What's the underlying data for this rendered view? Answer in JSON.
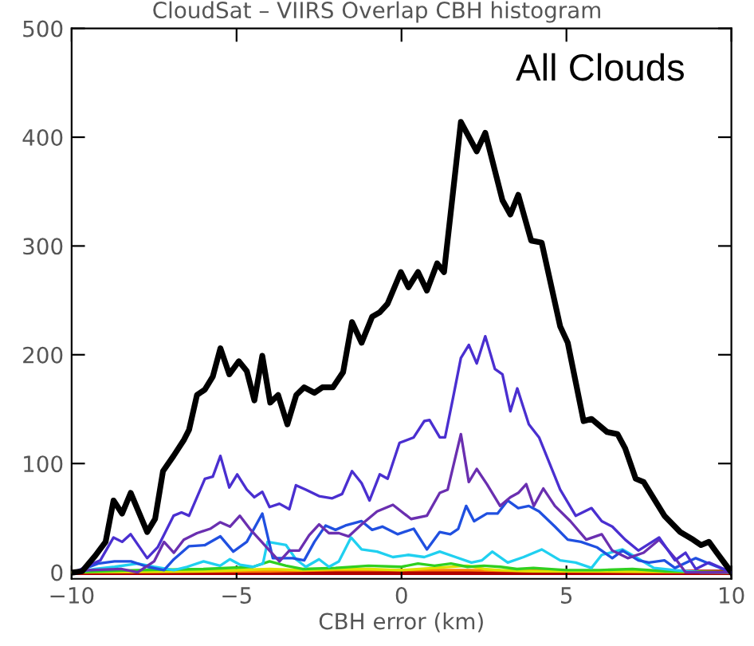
{
  "chart_data": {
    "type": "line",
    "title": "CloudSat – VIIRS Overlap CBH histogram",
    "xlabel": "CBH error (km)",
    "annotations": [
      "All Clouds"
    ],
    "xlim": [
      -10,
      10
    ],
    "xticks": [
      {
        "value": -10,
        "label": "−10"
      },
      {
        "value": -5,
        "label": "−5"
      },
      0,
      5,
      10
    ],
    "ylim": [
      -6,
      500
    ],
    "yticks": [
      0,
      100,
      200,
      300,
      400,
      500
    ],
    "grid": false,
    "legend": false,
    "marker": "none",
    "line_style": "solid",
    "series": [
      {
        "color": "#000000",
        "x": [
          -9.92,
          -9.68,
          -9.29,
          -8.97,
          -8.73,
          -8.47,
          -8.21,
          -7.71,
          -7.47,
          -7.23,
          -6.91,
          -6.59,
          -6.44,
          -6.2,
          -5.96,
          -5.72,
          -5.49,
          -5.22,
          -4.93,
          -4.69,
          -4.46,
          -4.22,
          -3.98,
          -3.74,
          -3.46,
          -3.19,
          -2.95,
          -2.64,
          -2.4,
          -2.08,
          -1.77,
          -1.5,
          -1.21,
          -0.89,
          -0.66,
          -0.42,
          -0.02,
          0.21,
          0.5,
          0.77,
          1.08,
          1.29,
          1.8,
          2.28,
          2.54,
          3.06,
          3.3,
          3.54,
          3.93,
          4.25,
          4.81,
          5.04,
          5.52,
          5.76,
          6.23,
          6.55,
          6.78,
          7.1,
          7.34,
          7.97,
          8.45,
          8.84,
          9.08,
          9.32,
          9.56,
          10
        ],
        "values": [
          0,
          1,
          15,
          28,
          66,
          54,
          73,
          37,
          49,
          93,
          107,
          122,
          131,
          163,
          168,
          180,
          206,
          182,
          194,
          185,
          158,
          199,
          156,
          163,
          136,
          163,
          170,
          165,
          170,
          170,
          184,
          230,
          211,
          235,
          239,
          247,
          276,
          262,
          276,
          259,
          284,
          276,
          414,
          387,
          404,
          342,
          329,
          347,
          305,
          303,
          226,
          211,
          139,
          141,
          129,
          127,
          114,
          86,
          83,
          52,
          37,
          30,
          25,
          28,
          18,
          0
        ]
      },
      {
        "color": "#4a2fd0",
        "x": [
          -9.92,
          -9.13,
          -8.73,
          -8.47,
          -8.21,
          -7.71,
          -7.39,
          -6.91,
          -6.67,
          -6.44,
          -5.96,
          -5.72,
          -5.49,
          -5.22,
          -4.98,
          -4.69,
          -4.46,
          -4.22,
          -4.0,
          -3.7,
          -3.4,
          -3.2,
          -2.9,
          -2.5,
          -2.1,
          -1.8,
          -1.5,
          -1.21,
          -0.97,
          -0.66,
          -0.42,
          -0.06,
          0.37,
          0.69,
          0.85,
          1.16,
          1.32,
          1.56,
          1.8,
          2.04,
          2.28,
          2.54,
          2.83,
          3.06,
          3.3,
          3.51,
          3.86,
          4.17,
          4.81,
          5.28,
          5.76,
          6.07,
          6.39,
          6.78,
          7.18,
          7.81,
          8.29,
          8.61,
          8.92,
          9.32,
          10
        ],
        "values": [
          0,
          11,
          32,
          28,
          35,
          13,
          23,
          52,
          55,
          52,
          86,
          88,
          107,
          78,
          90,
          76,
          69,
          74,
          60,
          63,
          58,
          80,
          76,
          70,
          68,
          72,
          93,
          82,
          66,
          90,
          86,
          119,
          124,
          139,
          140,
          124,
          124,
          160,
          197,
          209,
          192,
          217,
          187,
          182,
          148,
          169,
          136,
          124,
          76,
          52,
          59,
          47,
          42,
          30,
          20,
          32,
          11,
          18,
          3,
          9,
          0
        ]
      },
      {
        "color": "#6a2fb0",
        "x": [
          -10,
          -9.5,
          -8.5,
          -8.0,
          -7.5,
          -7.2,
          -6.9,
          -6.6,
          -6.2,
          -5.8,
          -5.5,
          -5.2,
          -4.9,
          -4.6,
          -4.3,
          -4.0,
          -3.7,
          -3.4,
          -3.1,
          -2.8,
          -2.5,
          -2.2,
          -1.9,
          -1.6,
          -1.21,
          -0.74,
          -0.26,
          0.29,
          0.77,
          1.16,
          1.4,
          1.8,
          2.04,
          2.28,
          2.59,
          2.99,
          3.3,
          3.54,
          3.78,
          4.01,
          4.3,
          4.65,
          5.12,
          5.6,
          6.07,
          6.39,
          6.86,
          7.34,
          7.81,
          8.29,
          8.61,
          10
        ],
        "values": [
          0,
          2,
          3,
          0,
          10,
          28,
          18,
          30,
          36,
          40,
          46,
          42,
          52,
          40,
          30,
          20,
          10,
          20,
          20,
          34,
          44,
          36,
          36,
          33,
          44,
          56,
          62,
          49,
          52,
          73,
          76,
          127,
          83,
          95,
          81,
          61,
          69,
          73,
          81,
          61,
          77,
          61,
          47,
          30,
          35,
          20,
          13,
          18,
          30,
          13,
          0,
          0
        ]
      },
      {
        "color": "#2050e0",
        "x": [
          -9.9,
          -9.2,
          -8.7,
          -8.2,
          -7.7,
          -7.2,
          -6.9,
          -6.44,
          -5.96,
          -5.49,
          -5.1,
          -4.69,
          -4.22,
          -3.9,
          -3.3,
          -2.95,
          -2.64,
          -2.3,
          -2.0,
          -1.7,
          -1.21,
          -0.89,
          -0.58,
          -0.12,
          0.37,
          0.77,
          1.16,
          1.48,
          1.72,
          1.96,
          2.2,
          2.59,
          2.91,
          3.22,
          3.54,
          3.86,
          4.17,
          4.65,
          5.04,
          5.44,
          5.92,
          6.39,
          6.7,
          7.18,
          7.5,
          7.97,
          8.29,
          8.92,
          9.24,
          10
        ],
        "values": [
          0,
          8,
          10,
          10,
          5,
          2,
          12,
          24,
          25,
          33,
          19,
          28,
          54,
          13,
          13,
          11,
          28,
          43,
          39,
          43,
          47,
          39,
          42,
          35,
          40,
          21,
          37,
          35,
          40,
          61,
          47,
          54,
          54,
          66,
          59,
          61,
          56,
          42,
          30,
          28,
          23,
          13,
          20,
          11,
          9,
          11,
          4,
          13,
          9,
          0
        ]
      },
      {
        "color": "#20d0f0",
        "x": [
          -9.8,
          -9.3,
          -8.7,
          -8.0,
          -7.5,
          -6.9,
          -6.5,
          -6.0,
          -5.5,
          -5.2,
          -4.9,
          -4.5,
          -4.2,
          -4.06,
          -3.5,
          -3.2,
          -2.9,
          -2.5,
          -2.2,
          -1.9,
          -1.53,
          -1.21,
          -0.74,
          -0.26,
          0.21,
          0.69,
          1.16,
          1.64,
          2.12,
          2.44,
          2.75,
          3.22,
          3.7,
          4.25,
          4.81,
          5.28,
          5.76,
          6.07,
          6.7,
          7.1,
          7.65,
          8.29,
          9.08,
          10
        ],
        "values": [
          0,
          3,
          5,
          8,
          5,
          2,
          5,
          10,
          6,
          12,
          7,
          5,
          8,
          28,
          25,
          12,
          5,
          12,
          5,
          10,
          32,
          21,
          19,
          14,
          16,
          14,
          19,
          14,
          9,
          11,
          19,
          9,
          14,
          21,
          11,
          9,
          4,
          16,
          21,
          14,
          4,
          2,
          0,
          0
        ]
      },
      {
        "color": "#30d020",
        "x": [
          -10,
          -8,
          -6,
          -4.5,
          -4,
          -3.5,
          -3,
          -2,
          -1,
          0,
          0.5,
          1,
          1.5,
          2,
          2.5,
          3,
          3.5,
          4,
          5,
          6,
          7,
          8,
          10
        ],
        "values": [
          0,
          2,
          3,
          5,
          10,
          6,
          3,
          4,
          6,
          5,
          8,
          6,
          8,
          5,
          6,
          5,
          3,
          4,
          2,
          2,
          3,
          1,
          0
        ]
      },
      {
        "color": "#e0e000",
        "x": [
          -10,
          -6,
          -4,
          -3,
          -2,
          -1,
          0,
          1,
          2,
          2.5,
          3,
          4,
          6,
          10
        ],
        "values": [
          0,
          1,
          3,
          2,
          3,
          3,
          2,
          4,
          6,
          3,
          2,
          1,
          1,
          0
        ]
      },
      {
        "color": "#ff8000",
        "x": [
          -10,
          -4,
          -2,
          0,
          2,
          4,
          10
        ],
        "values": [
          0,
          1,
          2,
          2,
          2,
          1,
          0
        ]
      },
      {
        "color": "#b00000",
        "x": [
          -10,
          10
        ],
        "values": [
          0,
          0
        ]
      }
    ]
  }
}
